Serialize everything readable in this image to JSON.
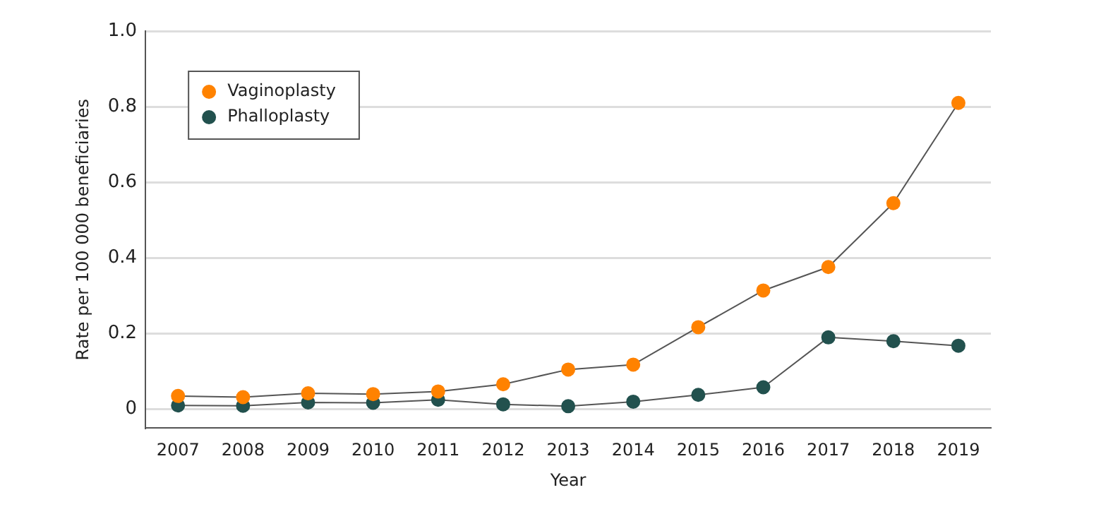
{
  "chart_data": {
    "type": "line",
    "xlabel": "Year",
    "ylabel": "Rate per 100 000 beneficiaries",
    "categories": [
      "2007",
      "2008",
      "2009",
      "2010",
      "2011",
      "2012",
      "2013",
      "2014",
      "2015",
      "2016",
      "2017",
      "2018",
      "2019"
    ],
    "series": [
      {
        "name": "Vaginoplasty",
        "color": "#ff8200",
        "values": [
          0.035,
          0.032,
          0.042,
          0.04,
          0.047,
          0.066,
          0.105,
          0.118,
          0.217,
          0.314,
          0.376,
          0.545,
          0.81
        ]
      },
      {
        "name": "Phalloplasty",
        "color": "#22514e",
        "values": [
          0.01,
          0.009,
          0.018,
          0.017,
          0.025,
          0.013,
          0.008,
          0.02,
          0.038,
          0.058,
          0.19,
          0.18,
          0.168
        ]
      }
    ],
    "ylim": [
      -0.05,
      1.0
    ],
    "yticks": [
      0,
      {
        "value": 0.2,
        "label": "0.2"
      },
      {
        "value": 0.4,
        "label": "0.4"
      },
      {
        "value": 0.6,
        "label": "0.6"
      },
      {
        "value": 0.8,
        "label": "0.8"
      },
      {
        "value": 1,
        "label": "1.0"
      }
    ],
    "grid": "y",
    "legend": "top left",
    "marker": "circle",
    "line_style": "solid"
  }
}
